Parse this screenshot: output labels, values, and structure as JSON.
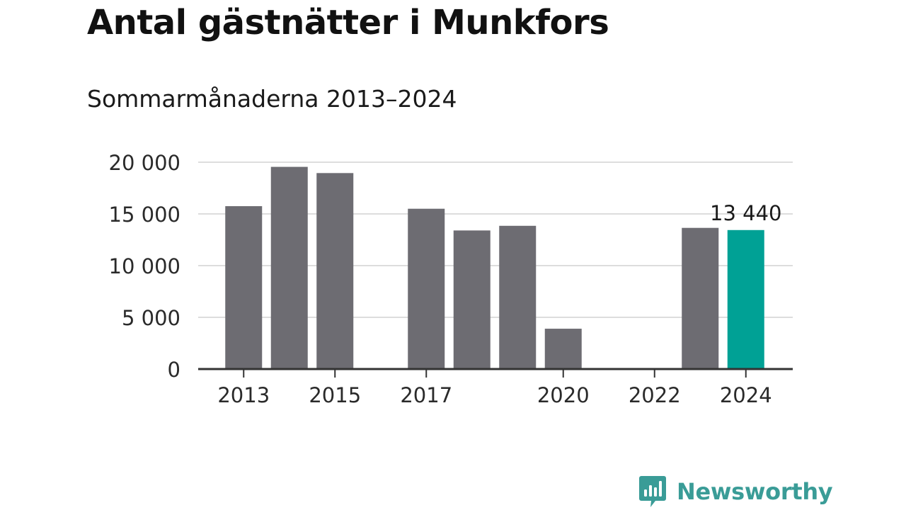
{
  "header": {
    "title": "Antal gästnätter i Munkfors",
    "subtitle": "Sommarmånaderna 2013–2024"
  },
  "chart_data": {
    "type": "bar",
    "title": "Antal gästnätter i Munkfors",
    "subtitle": "Sommarmånaderna 2013–2024",
    "xlabel": "",
    "ylabel": "",
    "categories": [
      "2013",
      "2014",
      "2015",
      "2016",
      "2017",
      "2018",
      "2019",
      "2020",
      "2021",
      "2022",
      "2023",
      "2024"
    ],
    "values": [
      15750,
      19550,
      18950,
      null,
      15500,
      13400,
      13850,
      3900,
      null,
      null,
      13650,
      13440
    ],
    "ylim": [
      0,
      20000
    ],
    "y_ticks": [
      0,
      5000,
      10000,
      15000,
      20000
    ],
    "y_tick_labels": [
      "0",
      "5 000",
      "10 000",
      "15 000",
      "20 000"
    ],
    "x_tick_labels": [
      "2013",
      "2015",
      "2017",
      "2020",
      "2022",
      "2024"
    ],
    "grid": true,
    "highlight": {
      "category": "2024",
      "label": "13 440"
    },
    "colors": {
      "bar": "#6d6c72",
      "highlight": "#00a195",
      "grid": "#dddddd",
      "axis": "#333333"
    }
  },
  "brand": {
    "icon": "newsworthy-logo-icon",
    "name": "Newsworthy",
    "color": "#3a9c97"
  }
}
